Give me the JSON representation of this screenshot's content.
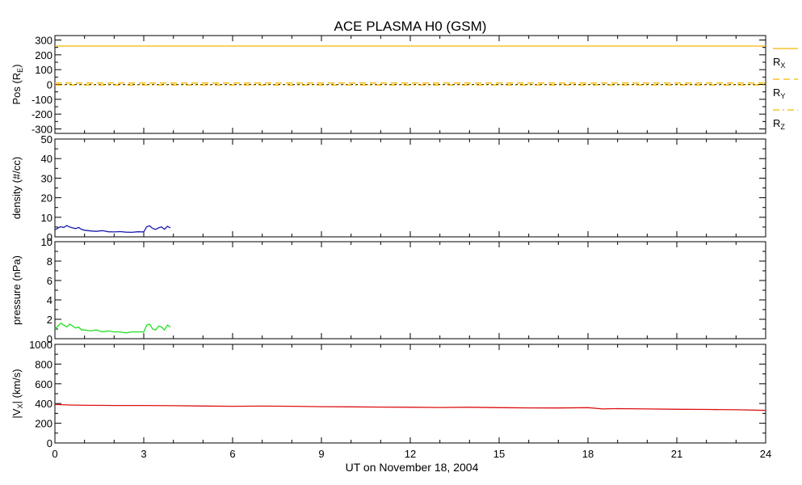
{
  "chart_data": {
    "title": "ACE PLASMA H0 (GSM)",
    "xlabel": "UT on November 18, 2004",
    "xlim": [
      0,
      24
    ],
    "xticks": [
      0,
      3,
      6,
      9,
      12,
      15,
      18,
      21,
      24
    ],
    "type": "line",
    "panels": [
      {
        "ylabel_main": "Pos (R",
        "ylabel_sub": "E",
        "ylabel_end": ")",
        "ylim": [
          -330,
          330
        ],
        "yticks": [
          -300,
          -200,
          -100,
          0,
          100,
          200,
          300
        ],
        "series": [
          {
            "name_main": "R",
            "name_sub": "X",
            "color": "#f5b800",
            "dash": "solid",
            "x": [
              0,
              24
            ],
            "y": [
              259,
              259
            ]
          },
          {
            "name_main": "R",
            "name_sub": "Y",
            "color": "#f5b800",
            "dash": "dashed",
            "x": [
              0,
              24
            ],
            "y": [
              10,
              10
            ]
          },
          {
            "name_main": "R",
            "name_sub": "Z",
            "color": "#f5b800",
            "dash": "dashdot",
            "x": [
              0,
              24
            ],
            "y": [
              -4,
              -4
            ]
          }
        ],
        "zero_line": true
      },
      {
        "ylabel_main": "density (#/cc)",
        "ylim": [
          0,
          50
        ],
        "yticks": [
          0,
          10,
          20,
          30,
          40,
          50
        ],
        "series": [
          {
            "color": "#1a1ab0",
            "x": [
              0.0,
              0.1,
              0.2,
              0.3,
              0.4,
              0.5,
              0.6,
              0.7,
              0.8,
              0.9,
              1.0,
              1.2,
              1.4,
              1.6,
              1.8,
              2.0,
              2.2,
              2.4,
              2.6,
              2.8,
              3.0,
              3.1,
              3.2,
              3.3,
              3.4,
              3.5,
              3.6,
              3.7,
              3.8,
              3.9
            ],
            "y": [
              3.5,
              4.5,
              5.2,
              4.8,
              5.8,
              5.0,
              4.6,
              4.2,
              4.8,
              3.8,
              3.4,
              3.0,
              2.8,
              3.2,
              2.6,
              2.5,
              2.7,
              2.4,
              2.3,
              2.6,
              2.5,
              5.2,
              5.6,
              4.3,
              3.8,
              4.6,
              5.1,
              3.9,
              5.4,
              4.6
            ]
          }
        ]
      },
      {
        "ylabel_main": "pressure (nPa)",
        "ylim": [
          0,
          10
        ],
        "yticks": [
          0,
          2,
          4,
          6,
          8,
          10
        ],
        "series": [
          {
            "color": "#22e022",
            "x": [
              0.0,
              0.1,
              0.2,
              0.3,
              0.4,
              0.5,
              0.6,
              0.7,
              0.8,
              0.9,
              1.0,
              1.2,
              1.4,
              1.6,
              1.8,
              2.0,
              2.2,
              2.4,
              2.6,
              2.8,
              3.0,
              3.1,
              3.2,
              3.3,
              3.4,
              3.5,
              3.6,
              3.7,
              3.8,
              3.9
            ],
            "y": [
              1.0,
              1.3,
              1.6,
              1.4,
              1.2,
              1.5,
              1.3,
              1.1,
              1.2,
              0.9,
              0.9,
              0.8,
              0.9,
              0.7,
              0.8,
              0.7,
              0.7,
              0.6,
              0.7,
              0.7,
              0.7,
              1.4,
              1.5,
              1.0,
              0.9,
              1.3,
              1.2,
              0.9,
              1.4,
              1.2
            ]
          }
        ]
      },
      {
        "ylabel_main": "|V",
        "ylabel_sub": "X",
        "ylabel_end": "| (km/s)",
        "ylim": [
          0,
          1000
        ],
        "yticks": [
          0,
          200,
          400,
          600,
          800,
          1000
        ],
        "series": [
          {
            "color": "#dd1111",
            "x": [
              0,
              0.5,
              1,
              2,
              3,
              4,
              5,
              6,
              7,
              8,
              9,
              10,
              11,
              12,
              13,
              14,
              15,
              16,
              17,
              18,
              18.5,
              19,
              20,
              21,
              22,
              23,
              24
            ],
            "y": [
              390,
              385,
              382,
              380,
              380,
              378,
              375,
              372,
              374,
              372,
              368,
              366,
              364,
              362,
              360,
              362,
              358,
              356,
              355,
              358,
              345,
              348,
              345,
              342,
              340,
              337,
              330
            ]
          }
        ]
      }
    ]
  }
}
